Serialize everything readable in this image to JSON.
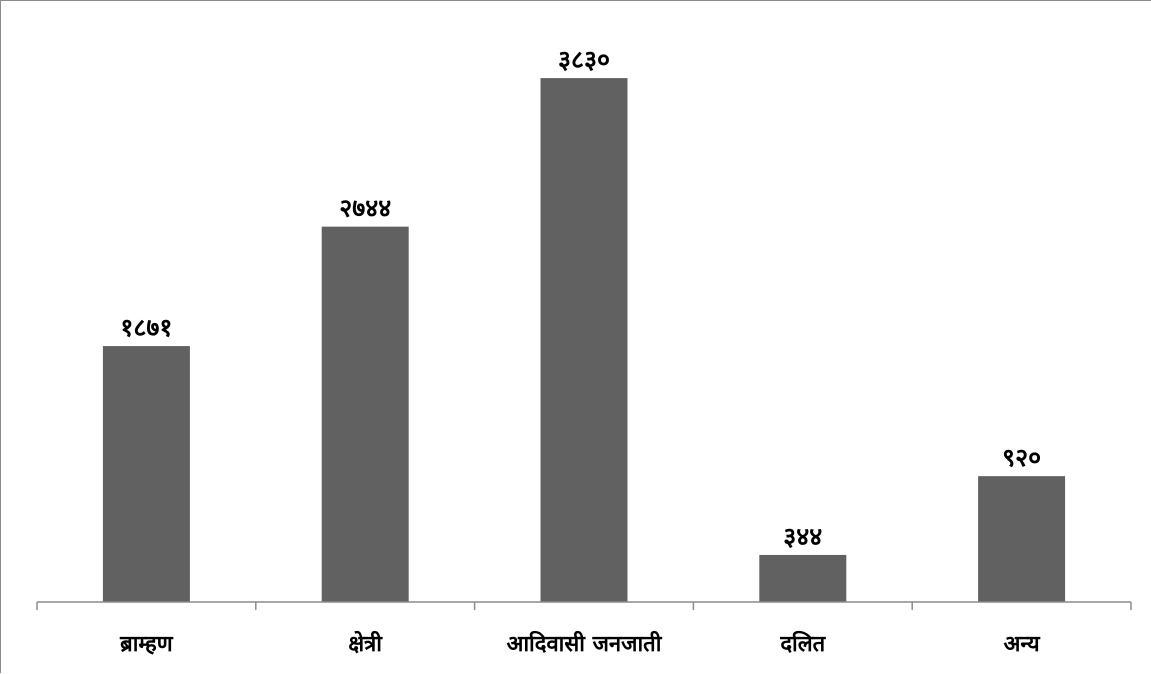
{
  "chart_data": {
    "type": "bar",
    "categories": [
      "ब्राम्हण",
      "क्षेत्री",
      "आदिवासी जनजाती",
      "दलित",
      "अन्य"
    ],
    "values": [
      1871,
      2744,
      3830,
      344,
      920
    ],
    "value_labels": [
      "१८७१",
      "२७४४",
      "३८३०",
      "३४४",
      "९२०"
    ],
    "title": "",
    "xlabel": "",
    "ylabel": "",
    "ylim": [
      0,
      3955
    ],
    "grid": false,
    "legend": "none",
    "bar_color": "#616161",
    "axis_color": "#8c8c8c"
  }
}
